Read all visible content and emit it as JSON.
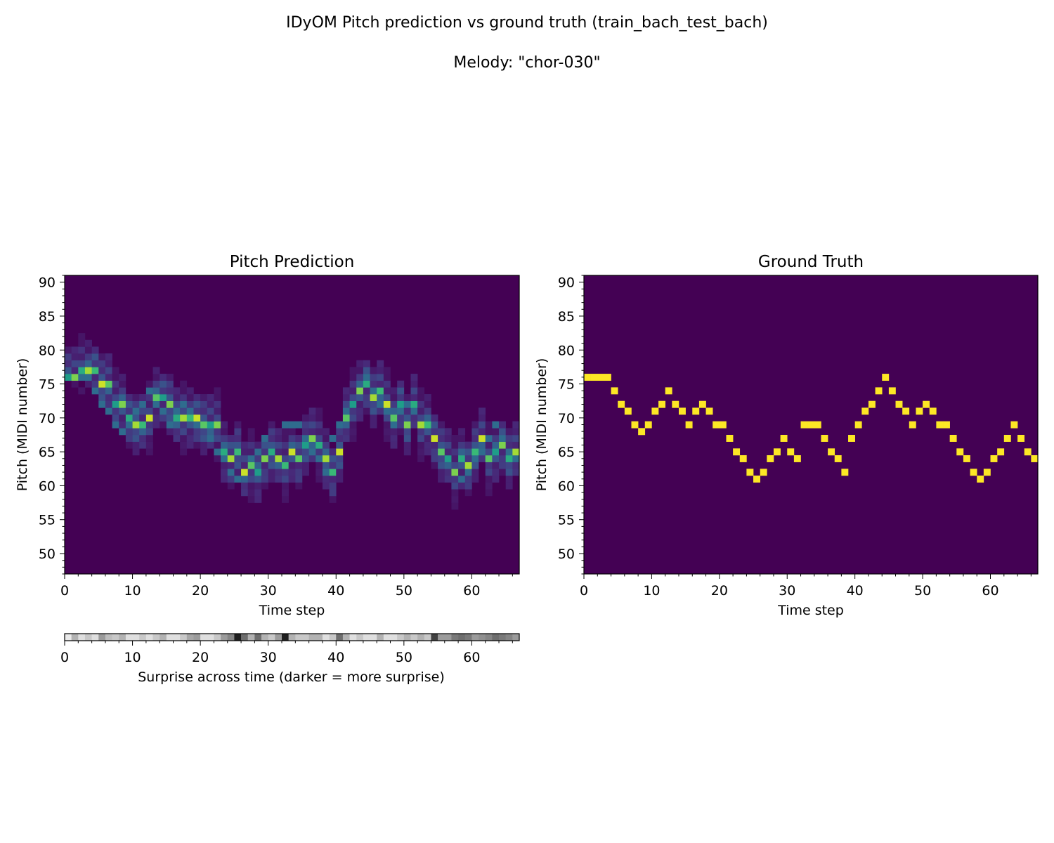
{
  "figure": {
    "title": "IDyOM Pitch prediction vs ground truth (train_bach_test_bach)",
    "subtitle": "Melody: \"chor-030\""
  },
  "chart_data": [
    {
      "type": "heatmap",
      "title": "Pitch Prediction",
      "xlabel": "Time step",
      "ylabel": "Pitch (MIDI number)",
      "xlim": [
        0,
        67
      ],
      "ylim": [
        47,
        91
      ],
      "xticks": [
        0,
        10,
        20,
        30,
        40,
        50,
        60
      ],
      "yticks": [
        50,
        55,
        60,
        65,
        70,
        75,
        80,
        85,
        90
      ],
      "colormap": "viridis",
      "peak_pitch": [
        76,
        76,
        77,
        77,
        77,
        75,
        75,
        72,
        72,
        70,
        69,
        69,
        70,
        73,
        73,
        72,
        70,
        70,
        70,
        70,
        69,
        69,
        69,
        65,
        64,
        65,
        62,
        63,
        62,
        64,
        65,
        64,
        63,
        65,
        64,
        66,
        67,
        66,
        64,
        62,
        65,
        70,
        72,
        74,
        75,
        73,
        74,
        72,
        70,
        72,
        69,
        72,
        69,
        69,
        67,
        65,
        64,
        62,
        64,
        63,
        65,
        67,
        64,
        65,
        66,
        64,
        65
      ]
    },
    {
      "type": "heatmap",
      "title": "Ground Truth",
      "xlabel": "Time step",
      "ylabel": "Pitch (MIDI number)",
      "xlim": [
        0,
        67
      ],
      "ylim": [
        47,
        91
      ],
      "xticks": [
        0,
        10,
        20,
        30,
        40,
        50,
        60
      ],
      "yticks": [
        50,
        55,
        60,
        65,
        70,
        75,
        80,
        85,
        90
      ],
      "colormap": "viridis",
      "pitch": [
        76,
        76,
        76,
        76,
        74,
        72,
        71,
        69,
        68,
        69,
        71,
        72,
        74,
        72,
        71,
        69,
        71,
        72,
        71,
        69,
        69,
        67,
        65,
        64,
        62,
        61,
        62,
        64,
        65,
        67,
        65,
        64,
        69,
        69,
        69,
        67,
        65,
        64,
        62,
        67,
        69,
        71,
        72,
        74,
        76,
        74,
        72,
        71,
        69,
        71,
        72,
        71,
        69,
        69,
        67,
        65,
        64,
        62,
        61,
        62,
        64,
        65,
        67,
        69,
        67,
        65,
        64
      ]
    },
    {
      "type": "heatmap",
      "title": "",
      "xlabel": "Surprise across time (darker = more surprise)",
      "xlim": [
        0,
        67
      ],
      "xticks": [
        0,
        10,
        20,
        30,
        40,
        50,
        60
      ],
      "colormap": "gray",
      "surprise": [
        0.05,
        0.3,
        0.1,
        0.2,
        0.1,
        0.4,
        0.25,
        0.2,
        0.3,
        0.1,
        0.1,
        0.2,
        0.1,
        0.2,
        0.3,
        0.1,
        0.1,
        0.2,
        0.35,
        0.4,
        0.1,
        0.1,
        0.2,
        0.4,
        0.5,
        0.95,
        0.6,
        0.3,
        0.6,
        0.3,
        0.2,
        0.4,
        0.95,
        0.3,
        0.2,
        0.2,
        0.3,
        0.3,
        0.1,
        0.2,
        0.6,
        0.3,
        0.1,
        0.2,
        0.1,
        0.1,
        0.3,
        0.1,
        0.1,
        0.2,
        0.3,
        0.2,
        0.3,
        0.2,
        0.8,
        0.4,
        0.4,
        0.55,
        0.6,
        0.55,
        0.4,
        0.45,
        0.5,
        0.6,
        0.55,
        0.5,
        0.4
      ]
    }
  ]
}
